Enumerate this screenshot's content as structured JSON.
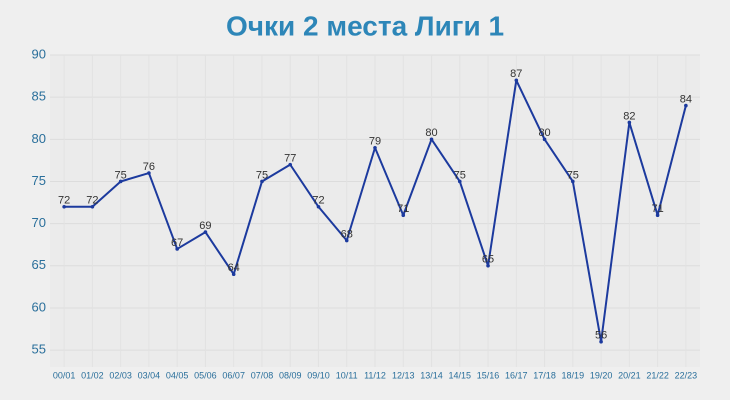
{
  "chart_data": {
    "type": "line",
    "title": "Очки 2 места Лиги 1",
    "categories": [
      "00/01",
      "01/02",
      "02/03",
      "03/04",
      "04/05",
      "05/06",
      "06/07",
      "07/08",
      "08/09",
      "09/10",
      "10/11",
      "11/12",
      "12/13",
      "13/14",
      "14/15",
      "15/16",
      "16/17",
      "17/18",
      "18/19",
      "19/20",
      "20/21",
      "21/22",
      "22/23"
    ],
    "series": [
      {
        "color": "#1c3a9e",
        "values": [
          72,
          72,
          75,
          76,
          67,
          69,
          64,
          75,
          77,
          72,
          68,
          79,
          71,
          80,
          75,
          65,
          87,
          80,
          75,
          56,
          82,
          71,
          84
        ]
      }
    ],
    "ylim": [
      53,
      90
    ],
    "yticks": [
      55,
      60,
      65,
      70,
      75,
      80,
      85,
      90
    ],
    "grid": true
  }
}
